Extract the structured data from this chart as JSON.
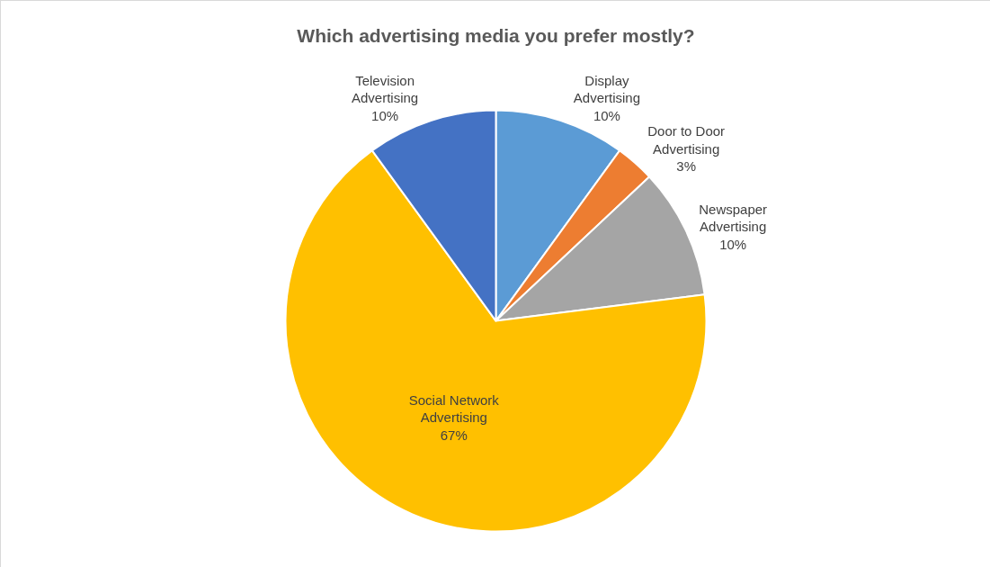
{
  "chart_data": {
    "type": "pie",
    "title": "Which advertising media you prefer mostly?",
    "categories": [
      "Display Advertising",
      "Door to Door Advertising",
      "Newspaper Advertising",
      "Social Network Advertising",
      "Television Advertising"
    ],
    "values": [
      10,
      3,
      10,
      67,
      10
    ],
    "value_labels": [
      "10%",
      "3%",
      "10%",
      "67%",
      "10%"
    ],
    "colors": [
      "#5b9bd5",
      "#ed7d31",
      "#a5a5a5",
      "#ffc000",
      "#4472c4"
    ],
    "legend": false
  }
}
